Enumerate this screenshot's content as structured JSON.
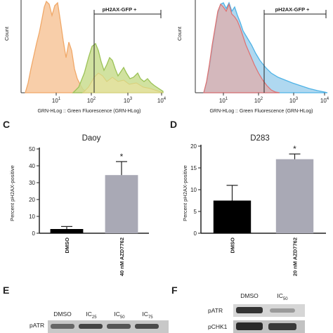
{
  "panels": {
    "A": {
      "ylabel": "Count",
      "xlabel": "GRN-HLog :: Green Fluorescence (GRN-HLog)",
      "gate_label": "pH2AX-GFP +",
      "x_ticks": [
        {
          "base": "10",
          "exp": "1"
        },
        {
          "base": "10",
          "exp": "2"
        },
        {
          "base": "10",
          "exp": "3"
        },
        {
          "base": "10",
          "exp": "4"
        }
      ],
      "colors": {
        "control_fill": "#f7c9a0",
        "control_line": "#f0a868",
        "treated_fill": "#c9dd8f",
        "treated_line": "#9bc257"
      }
    },
    "B": {
      "ylabel": "Count",
      "xlabel": "GRN-HLog :: Green Fluorescence (GRN-HLog)",
      "gate_label": "pH2AX-GFP +",
      "x_ticks": [
        {
          "base": "10",
          "exp": "1"
        },
        {
          "base": "10",
          "exp": "2"
        },
        {
          "base": "10",
          "exp": "3"
        },
        {
          "base": "10",
          "exp": "4"
        }
      ],
      "colors": {
        "control_fill": "#e8a7a0",
        "control_line": "#e07070",
        "treated_fill": "#a6d4ee",
        "treated_line": "#4fb3e6"
      }
    },
    "C": {
      "letter": "C",
      "chart_data": {
        "type": "bar",
        "title": "Daoy",
        "ylabel": "Percent pH2AX-positive",
        "categories": [
          "DMSO",
          "40 nM AZD7762"
        ],
        "values": [
          2.5,
          34.5
        ],
        "errors": [
          1.5,
          8
        ],
        "significance": [
          "",
          "*"
        ],
        "y_ticks": [
          0,
          10,
          20,
          30,
          40,
          50
        ],
        "ylim": [
          0,
          50
        ],
        "bar_colors": [
          "#000000",
          "#a9a9b5"
        ]
      }
    },
    "D": {
      "letter": "D",
      "chart_data": {
        "type": "bar",
        "title": "D283",
        "ylabel": "Percent pH2AX-positive",
        "categories": [
          "DMSO",
          "20 nM AZD7762"
        ],
        "values": [
          7.5,
          17
        ],
        "errors": [
          3.5,
          1.2
        ],
        "significance": [
          "",
          "*"
        ],
        "y_ticks": [
          0,
          5,
          10,
          15,
          20
        ],
        "ylim": [
          0,
          20
        ],
        "bar_colors": [
          "#000000",
          "#a9a9b5"
        ]
      }
    },
    "E": {
      "letter": "E",
      "row_label": "pATR",
      "lanes": [
        {
          "base": "DMSO",
          "sub": ""
        },
        {
          "base": "IC",
          "sub": "25"
        },
        {
          "base": "IC",
          "sub": "50"
        },
        {
          "base": "IC",
          "sub": "75"
        }
      ]
    },
    "F": {
      "letter": "F",
      "rows": [
        "pATR",
        "pCHK1"
      ],
      "lanes": [
        {
          "base": "DMSO",
          "sub": ""
        },
        {
          "base": "IC",
          "sub": "50"
        }
      ]
    }
  }
}
